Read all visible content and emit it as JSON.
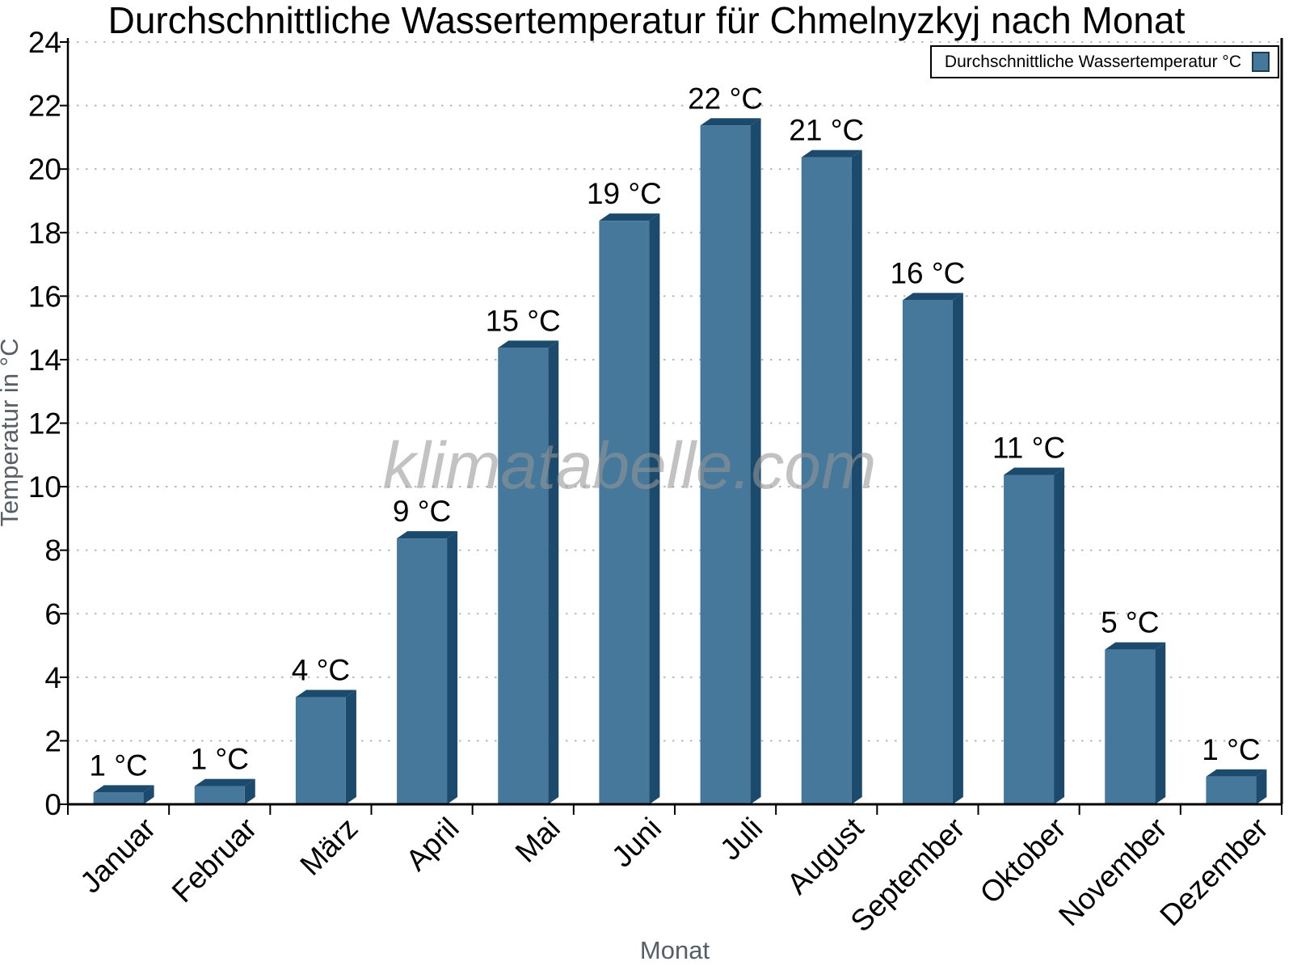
{
  "watermark": {
    "text": "klimatabelle.com"
  },
  "chart_data": {
    "type": "bar",
    "title": "Durchschnittliche Wassertemperatur für Chmelnyzkyj nach Monat",
    "xlabel": "Monat",
    "ylabel": "Temperatur in °C",
    "ylim": [
      0,
      24
    ],
    "ytick_step": 2,
    "grid": "horizontal-dotted",
    "legend_position": "top-right",
    "categories": [
      "Januar",
      "Februar",
      "März",
      "April",
      "Mai",
      "Juni",
      "Juli",
      "August",
      "September",
      "Oktober",
      "November",
      "Dezember"
    ],
    "series": [
      {
        "name": "Durchschnittliche Wassertemperatur °C",
        "values": [
          0.6,
          0.8,
          3.6,
          8.6,
          14.6,
          18.6,
          21.6,
          20.6,
          16.1,
          10.6,
          5.1,
          1.1
        ]
      }
    ],
    "bar_labels": [
      "1 °C",
      "1 °C",
      "4 °C",
      "9 °C",
      "15 °C",
      "19 °C",
      "22 °C",
      "21 °C",
      "16 °C",
      "11 °C",
      "5 °C",
      "1 °C"
    ]
  },
  "colors": {
    "bar_face": "#45789b",
    "bar_shade": "#1c4a6c",
    "legend_square_border": "#1d3c50",
    "grid": "#b4b4b4",
    "axis": "#000000",
    "muted_text": "#565e66"
  }
}
